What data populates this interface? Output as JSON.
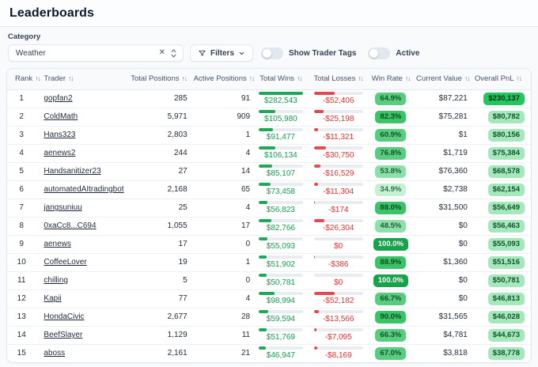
{
  "page": {
    "title": "Leaderboards"
  },
  "controls": {
    "category_label": "Category",
    "category_value": "Weather",
    "filters_button_label": "Filters",
    "toggles": [
      {
        "label": "Show Trader Tags",
        "on": false
      },
      {
        "label": "Active",
        "on": false
      }
    ]
  },
  "table": {
    "columns": [
      {
        "label": "Rank"
      },
      {
        "label": "Trader"
      },
      {
        "label": "Total Positions"
      },
      {
        "label": "Active Positions"
      },
      {
        "label": "Total Wins"
      },
      {
        "label": "Total Losses"
      },
      {
        "label": "Win Rate"
      },
      {
        "label": "Current Value"
      },
      {
        "label": "Overall PnL"
      }
    ],
    "rows": [
      {
        "rank": "1",
        "trader": "gopfan2",
        "total_positions": "285",
        "active_positions": "91",
        "total_wins": "$282,543",
        "total_losses": "-$52,406",
        "win_rate": "64.9%",
        "current_value": "$87,221",
        "overall_pnl": "$230,137"
      },
      {
        "rank": "2",
        "trader": "ColdMath",
        "total_positions": "5,971",
        "active_positions": "909",
        "total_wins": "$105,980",
        "total_losses": "-$25,198",
        "win_rate": "82.3%",
        "current_value": "$75,281",
        "overall_pnl": "$80,782"
      },
      {
        "rank": "3",
        "trader": "Hans323",
        "total_positions": "2,803",
        "active_positions": "1",
        "total_wins": "$91,477",
        "total_losses": "-$11,321",
        "win_rate": "60.9%",
        "current_value": "$1",
        "overall_pnl": "$80,156"
      },
      {
        "rank": "4",
        "trader": "aenews2",
        "total_positions": "244",
        "active_positions": "4",
        "total_wins": "$106,134",
        "total_losses": "-$30,750",
        "win_rate": "76.8%",
        "current_value": "$1,719",
        "overall_pnl": "$75,384"
      },
      {
        "rank": "5",
        "trader": "Handsanitizer23",
        "total_positions": "27",
        "active_positions": "14",
        "total_wins": "$85,107",
        "total_losses": "-$16,529",
        "win_rate": "53.8%",
        "current_value": "$76,360",
        "overall_pnl": "$68,578"
      },
      {
        "rank": "6",
        "trader": "automatedAItradingbot",
        "total_positions": "2,168",
        "active_positions": "65",
        "total_wins": "$73,458",
        "total_losses": "-$11,304",
        "win_rate": "34.9%",
        "current_value": "$2,738",
        "overall_pnl": "$62,154"
      },
      {
        "rank": "7",
        "trader": "jangsuniuu",
        "total_positions": "25",
        "active_positions": "4",
        "total_wins": "$56,823",
        "total_losses": "-$174",
        "win_rate": "88.0%",
        "current_value": "$31,500",
        "overall_pnl": "$56,649"
      },
      {
        "rank": "8",
        "trader": "0xaCc8...C694",
        "total_positions": "1,055",
        "active_positions": "17",
        "total_wins": "$82,766",
        "total_losses": "-$26,304",
        "win_rate": "48.5%",
        "current_value": "$0",
        "overall_pnl": "$56,463"
      },
      {
        "rank": "9",
        "trader": "aenews",
        "total_positions": "17",
        "active_positions": "0",
        "total_wins": "$55,093",
        "total_losses": "$0",
        "win_rate": "100.0%",
        "current_value": "$0",
        "overall_pnl": "$55,093"
      },
      {
        "rank": "10",
        "trader": "CoffeeLover",
        "total_positions": "19",
        "active_positions": "1",
        "total_wins": "$51,902",
        "total_losses": "-$386",
        "win_rate": "88.9%",
        "current_value": "$1,360",
        "overall_pnl": "$51,516"
      },
      {
        "rank": "11",
        "trader": "chilling",
        "total_positions": "5",
        "active_positions": "0",
        "total_wins": "$50,781",
        "total_losses": "$0",
        "win_rate": "100.0%",
        "current_value": "$0",
        "overall_pnl": "$50,781"
      },
      {
        "rank": "12",
        "trader": "Kapii",
        "total_positions": "77",
        "active_positions": "4",
        "total_wins": "$98,994",
        "total_losses": "-$52,182",
        "win_rate": "66.7%",
        "current_value": "$0",
        "overall_pnl": "$46,813"
      },
      {
        "rank": "13",
        "trader": "HondaCivic",
        "total_positions": "2,677",
        "active_positions": "28",
        "total_wins": "$59,594",
        "total_losses": "-$13,566",
        "win_rate": "90.0%",
        "current_value": "$31,565",
        "overall_pnl": "$46,028"
      },
      {
        "rank": "14",
        "trader": "BeefSlayer",
        "total_positions": "1,129",
        "active_positions": "11",
        "total_wins": "$51,769",
        "total_losses": "-$7,095",
        "win_rate": "66.3%",
        "current_value": "$4,781",
        "overall_pnl": "$44,673"
      },
      {
        "rank": "15",
        "trader": "aboss",
        "total_positions": "2,161",
        "active_positions": "21",
        "total_wins": "$46,947",
        "total_losses": "-$8,169",
        "win_rate": "67.0%",
        "current_value": "$3,818",
        "overall_pnl": "$38,778"
      }
    ]
  },
  "colors": {
    "win_bar_green": "#1fa857",
    "loss_bar_red": "#e5484d",
    "rate_badge_full": "#16a34a",
    "pnl_badge_bright": "#22c55e",
    "pnl_badge_soft": "#a4e8bb"
  }
}
